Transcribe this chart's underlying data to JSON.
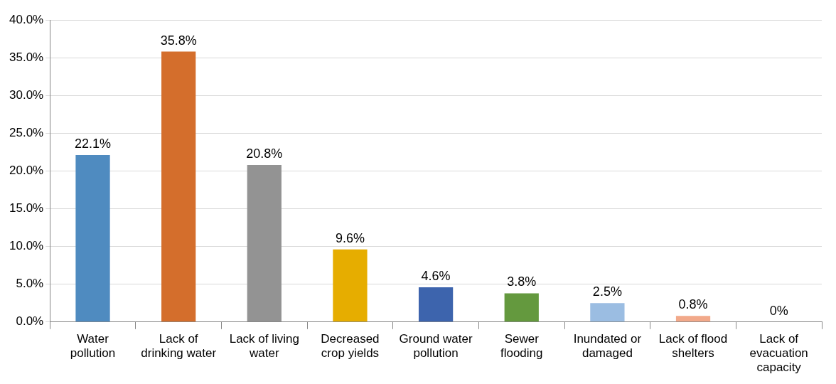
{
  "chart_data": {
    "type": "bar",
    "categories": [
      "Water pollution",
      "Lack of drinking water",
      "Lack of living water",
      "Decreased crop yields",
      "Ground water pollution",
      "Sewer flooding",
      "Inundated or damaged",
      "Lack of flood shelters",
      "Lack of evacuation capacity"
    ],
    "values": [
      22.1,
      35.8,
      20.8,
      9.6,
      4.6,
      3.8,
      2.5,
      0.8,
      0
    ],
    "colors": [
      "#4f8bc0",
      "#d46e2c",
      "#939393",
      "#e6ad00",
      "#3d64ad",
      "#64993e",
      "#9bbde2",
      "#f2a98a",
      "#c0c0c0"
    ],
    "value_labels": [
      "22.1%",
      "35.8%",
      "20.8%",
      "9.6%",
      "4.6%",
      "3.8%",
      "2.5%",
      "0.8%",
      "0%"
    ],
    "ylim": [
      0,
      40
    ],
    "yticks": [
      {
        "value": 0,
        "label": "0.0%"
      },
      {
        "value": 5,
        "label": "5.0%"
      },
      {
        "value": 10,
        "label": "10.0%"
      },
      {
        "value": 15,
        "label": "15.0%"
      },
      {
        "value": 20,
        "label": "20.0%"
      },
      {
        "value": 25,
        "label": "25.0%"
      },
      {
        "value": 30,
        "label": "30.0%"
      },
      {
        "value": 35,
        "label": "35.0%"
      },
      {
        "value": 40,
        "label": "40.0%"
      }
    ],
    "grid": "y",
    "legend": false
  }
}
